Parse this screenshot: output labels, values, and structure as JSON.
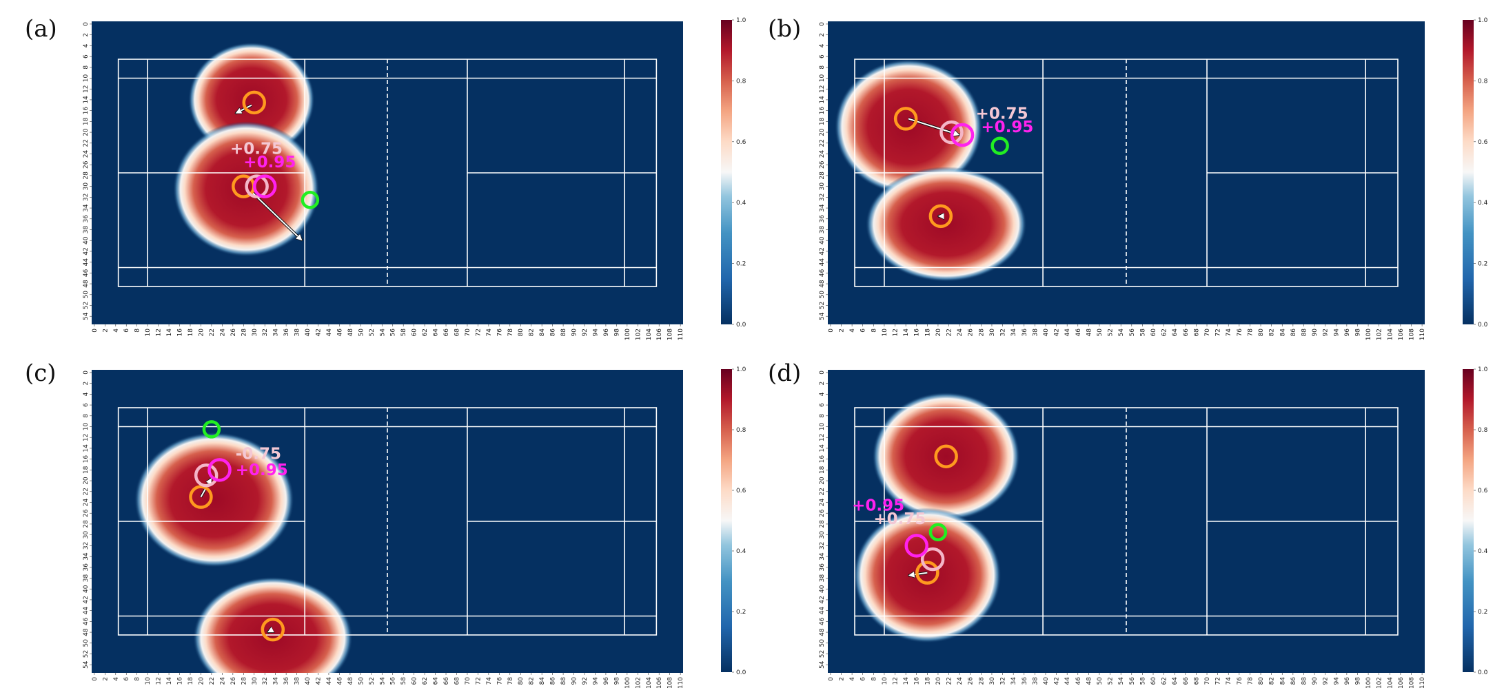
{
  "chart_data": [
    {
      "panel_label": "(a)",
      "type": "heatmap",
      "xlim": [
        0,
        111
      ],
      "ylim": [
        0,
        56
      ],
      "x_ticks": [
        0,
        2,
        4,
        6,
        8,
        10,
        12,
        14,
        16,
        18,
        20,
        22,
        24,
        26,
        28,
        30,
        32,
        34,
        36,
        38,
        40,
        42,
        44,
        46,
        48,
        50,
        52,
        54,
        56,
        58,
        60,
        62,
        64,
        66,
        68,
        70,
        72,
        74,
        76,
        78,
        80,
        82,
        84,
        86,
        88,
        90,
        92,
        94,
        96,
        98,
        100,
        102,
        104,
        106,
        108,
        110
      ],
      "y_ticks": [
        0,
        2,
        4,
        6,
        8,
        10,
        12,
        14,
        16,
        18,
        20,
        22,
        24,
        26,
        28,
        30,
        32,
        34,
        36,
        38,
        40,
        42,
        44,
        46,
        48,
        50,
        52,
        54
      ],
      "colorbar": {
        "min": 0.0,
        "max": 1.0,
        "ticks": [
          "0.0",
          "0.2",
          "0.4",
          "0.6",
          "0.8",
          "1.0"
        ]
      },
      "blobs": [
        {
          "cx": 30,
          "cy": 14.5,
          "rx": 9.5,
          "ry": 8.5
        },
        {
          "cx": 29,
          "cy": 31,
          "rx": 11,
          "ry": 10
        }
      ],
      "orange_circles": [
        [
          30.5,
          15
        ],
        [
          28.5,
          30.5
        ]
      ],
      "pink_circle": [
        31,
        30.5
      ],
      "magenta_circle": [
        32.5,
        30.5
      ],
      "green_circle": [
        41,
        33
      ],
      "arrows": [
        {
          "from": [
            30,
            15.5
          ],
          "to": [
            27,
            17
          ]
        },
        {
          "from": [
            30,
            31.5
          ],
          "to": [
            39.5,
            40.5
          ]
        }
      ],
      "labels": {
        "pink": {
          "text": "+0.75",
          "x": 26,
          "y": 24.5
        },
        "magenta": {
          "text": "+0.95",
          "x": 28.5,
          "y": 27
        }
      }
    },
    {
      "panel_label": "(b)",
      "type": "heatmap",
      "xlim": [
        0,
        111
      ],
      "ylim": [
        0,
        56
      ],
      "x_ticks": [
        0,
        2,
        4,
        6,
        8,
        10,
        12,
        14,
        16,
        18,
        20,
        22,
        24,
        26,
        28,
        30,
        32,
        34,
        36,
        38,
        40,
        42,
        44,
        46,
        48,
        50,
        52,
        54,
        56,
        58,
        60,
        62,
        64,
        66,
        68,
        70,
        72,
        74,
        76,
        78,
        80,
        82,
        84,
        86,
        88,
        90,
        92,
        94,
        96,
        98,
        100,
        102,
        104,
        106,
        108,
        110
      ],
      "y_ticks": [
        0,
        2,
        4,
        6,
        8,
        10,
        12,
        14,
        16,
        18,
        20,
        22,
        24,
        26,
        28,
        30,
        32,
        34,
        36,
        38,
        40,
        42,
        44,
        46,
        48,
        50,
        52,
        54
      ],
      "colorbar": {
        "min": 0.0,
        "max": 1.0,
        "ticks": [
          "0.0",
          "0.2",
          "0.4",
          "0.6",
          "0.8",
          "1.0"
        ]
      },
      "blobs": [
        {
          "cx": 15,
          "cy": 19.5,
          "rx": 11,
          "ry": 10
        },
        {
          "cx": 22,
          "cy": 37.5,
          "rx": 12,
          "ry": 8.5
        }
      ],
      "orange_circles": [
        [
          14.5,
          18
        ],
        [
          21,
          36
        ]
      ],
      "pink_circle": [
        23,
        20.5
      ],
      "magenta_circle": [
        25,
        21
      ],
      "green_circle": [
        32,
        23
      ],
      "arrows": [
        {
          "from": [
            15,
            18
          ],
          "to": [
            24.5,
            21
          ]
        },
        {
          "from": [
            21.5,
            36
          ],
          "to": [
            20.5,
            36
          ]
        }
      ],
      "labels": {
        "pink": {
          "text": "+0.75",
          "x": 27.5,
          "y": 18
        },
        "magenta": {
          "text": "+0.95",
          "x": 28.5,
          "y": 20.5
        }
      }
    },
    {
      "panel_label": "(c)",
      "type": "heatmap",
      "xlim": [
        0,
        111
      ],
      "ylim": [
        0,
        56
      ],
      "x_ticks": [
        0,
        2,
        4,
        6,
        8,
        10,
        12,
        14,
        16,
        18,
        20,
        22,
        24,
        26,
        28,
        30,
        32,
        34,
        36,
        38,
        40,
        42,
        44,
        46,
        48,
        50,
        52,
        54,
        56,
        58,
        60,
        62,
        64,
        66,
        68,
        70,
        72,
        74,
        76,
        78,
        80,
        82,
        84,
        86,
        88,
        90,
        92,
        94,
        96,
        98,
        100,
        102,
        104,
        106,
        108,
        110
      ],
      "y_ticks": [
        0,
        2,
        4,
        6,
        8,
        10,
        12,
        14,
        16,
        18,
        20,
        22,
        24,
        26,
        28,
        30,
        32,
        34,
        36,
        38,
        40,
        42,
        44,
        46,
        48,
        50,
        52,
        54
      ],
      "colorbar": {
        "min": 0.0,
        "max": 1.0,
        "ticks": [
          "0.0",
          "0.2",
          "0.4",
          "0.6",
          "0.8",
          "1.0"
        ]
      },
      "blobs": [
        {
          "cx": 23,
          "cy": 24,
          "rx": 12,
          "ry": 10
        },
        {
          "cx": 34,
          "cy": 49.5,
          "rx": 12,
          "ry": 9
        }
      ],
      "orange_circles": [
        [
          20.5,
          23.5
        ],
        [
          34,
          48
        ]
      ],
      "pink_circle": [
        21.5,
        19.5
      ],
      "magenta_circle": [
        24,
        18.5
      ],
      "green_circle": [
        22.5,
        11
      ],
      "arrows": [
        {
          "from": [
            20.5,
            23.5
          ],
          "to": [
            22.5,
            20
          ]
        },
        {
          "from": [
            34,
            48
          ],
          "to": [
            33,
            48.5
          ]
        }
      ],
      "labels": {
        "pink": {
          "text": "-0.75",
          "x": 27,
          "y": 16.5
        },
        "magenta": {
          "text": "+0.95",
          "x": 27,
          "y": 19.5
        }
      }
    },
    {
      "panel_label": "(d)",
      "type": "heatmap",
      "xlim": [
        0,
        111
      ],
      "ylim": [
        0,
        56
      ],
      "x_ticks": [
        0,
        2,
        4,
        6,
        8,
        10,
        12,
        14,
        16,
        18,
        20,
        22,
        24,
        26,
        28,
        30,
        32,
        34,
        36,
        38,
        40,
        42,
        44,
        46,
        48,
        50,
        52,
        54,
        56,
        58,
        60,
        62,
        64,
        66,
        68,
        70,
        72,
        74,
        76,
        78,
        80,
        82,
        84,
        86,
        88,
        90,
        92,
        94,
        96,
        98,
        100,
        102,
        104,
        106,
        108,
        110
      ],
      "y_ticks": [
        0,
        2,
        4,
        6,
        8,
        10,
        12,
        14,
        16,
        18,
        20,
        22,
        24,
        26,
        28,
        30,
        32,
        34,
        36,
        38,
        40,
        42,
        44,
        46,
        48,
        50,
        52,
        54
      ],
      "colorbar": {
        "min": 0.0,
        "max": 1.0,
        "ticks": [
          "0.0",
          "0.2",
          "0.4",
          "0.6",
          "0.8",
          "1.0"
        ]
      },
      "blobs": [
        {
          "cx": 22,
          "cy": 16,
          "rx": 11,
          "ry": 9.5
        },
        {
          "cx": 18.5,
          "cy": 38,
          "rx": 11,
          "ry": 10
        }
      ],
      "orange_circles": [
        [
          22,
          16
        ],
        [
          18.5,
          37.5
        ]
      ],
      "pink_circle": [
        19.5,
        35
      ],
      "magenta_circle": [
        16.5,
        32.5
      ],
      "green_circle": [
        20.5,
        30
      ],
      "arrows": [
        {
          "from": [
            18.5,
            37.5
          ],
          "to": [
            15,
            38
          ]
        }
      ],
      "labels": {
        "pink": {
          "text": "+0.75",
          "x": 8.5,
          "y": 28.5
        },
        "magenta": {
          "text": "+0.95",
          "x": 4.5,
          "y": 26
        }
      }
    }
  ],
  "colors": {
    "heat_low": "#053061",
    "heat_mid": "#f7f7f7",
    "heat_high": "#67001f",
    "court_line": "#ffffff",
    "orange": "#ff9a1f",
    "pink": "#f4b6c8",
    "magenta": "#ff22ee",
    "green": "#22ee22",
    "label_pink": "#f4c8d4",
    "label_magenta": "#ff22ee"
  }
}
